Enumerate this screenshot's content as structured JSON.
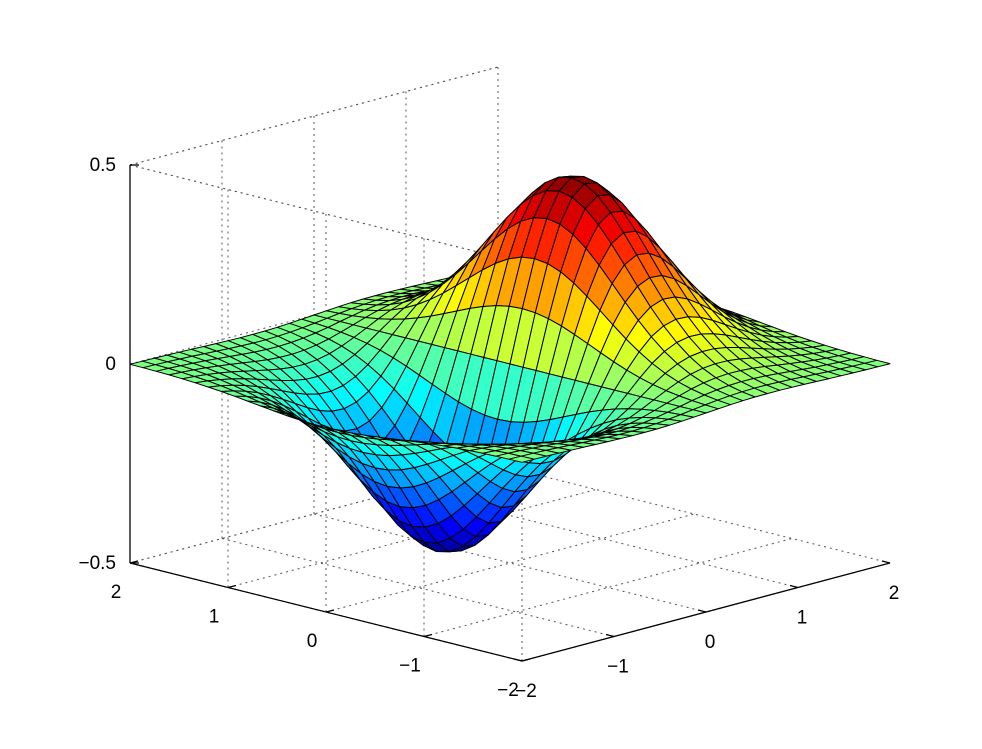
{
  "chart_data": {
    "type": "surface",
    "title": "",
    "xlabel": "",
    "ylabel": "",
    "zlabel": "",
    "function": "z = x * exp(-x^2 - y^2)",
    "x_range": [
      -2,
      2
    ],
    "y_range": [
      -2,
      2
    ],
    "z_range": [
      -0.5,
      0.5
    ],
    "grid_points": 31,
    "x_ticks": [
      -2,
      -1,
      0,
      1,
      2
    ],
    "y_ticks": [
      -2,
      -1,
      0,
      1,
      2
    ],
    "z_ticks": [
      -0.5,
      0,
      0.5
    ],
    "x_tick_labels": [
      "−2",
      "−1",
      "0",
      "1",
      "2"
    ],
    "y_tick_labels": [
      "−2",
      "−1",
      "0",
      "1",
      "2"
    ],
    "z_tick_labels": [
      "−0.5",
      "0",
      "0.5"
    ],
    "grid": true,
    "box_style": "dotted",
    "colormap": "jet",
    "edge_color": "#000000"
  }
}
